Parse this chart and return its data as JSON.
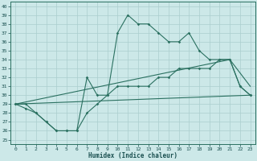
{
  "xlabel": "Humidex (Indice chaleur)",
  "background_color": "#cce8e8",
  "grid_color": "#aacece",
  "line_color": "#2a7060",
  "xlim": [
    -0.5,
    23.5
  ],
  "ylim": [
    24.5,
    40.5
  ],
  "yticks": [
    25,
    26,
    27,
    28,
    29,
    30,
    31,
    32,
    33,
    34,
    35,
    36,
    37,
    38,
    39,
    40
  ],
  "xticks": [
    0,
    1,
    2,
    3,
    4,
    5,
    6,
    7,
    8,
    9,
    10,
    11,
    12,
    13,
    14,
    15,
    16,
    17,
    18,
    19,
    20,
    21,
    22,
    23
  ],
  "line1_x": [
    0,
    1,
    2,
    3,
    4,
    5,
    6,
    7,
    8,
    9,
    10,
    11,
    12,
    13,
    14,
    15,
    16,
    17,
    18,
    19,
    20,
    21,
    22,
    23
  ],
  "line1_y": [
    29,
    29,
    28,
    27,
    26,
    26,
    26,
    32,
    30,
    30,
    37,
    39,
    38,
    38,
    37,
    36,
    36,
    37,
    35,
    34,
    34,
    34,
    31,
    30
  ],
  "line2_x": [
    0,
    1,
    2,
    3,
    4,
    5,
    6,
    7,
    8,
    9,
    10,
    11,
    12,
    13,
    14,
    15,
    16,
    17,
    18,
    19,
    20,
    21,
    22,
    23
  ],
  "line2_y": [
    29,
    28.5,
    28,
    27,
    26,
    26,
    26,
    28,
    29,
    30,
    31,
    31,
    31,
    31,
    32,
    32,
    33,
    33,
    33,
    33,
    34,
    34,
    31,
    30
  ],
  "line3_x": [
    0,
    23
  ],
  "line3_y": [
    29,
    30
  ],
  "line4_x": [
    0,
    21,
    23
  ],
  "line4_y": [
    29,
    34,
    31
  ]
}
